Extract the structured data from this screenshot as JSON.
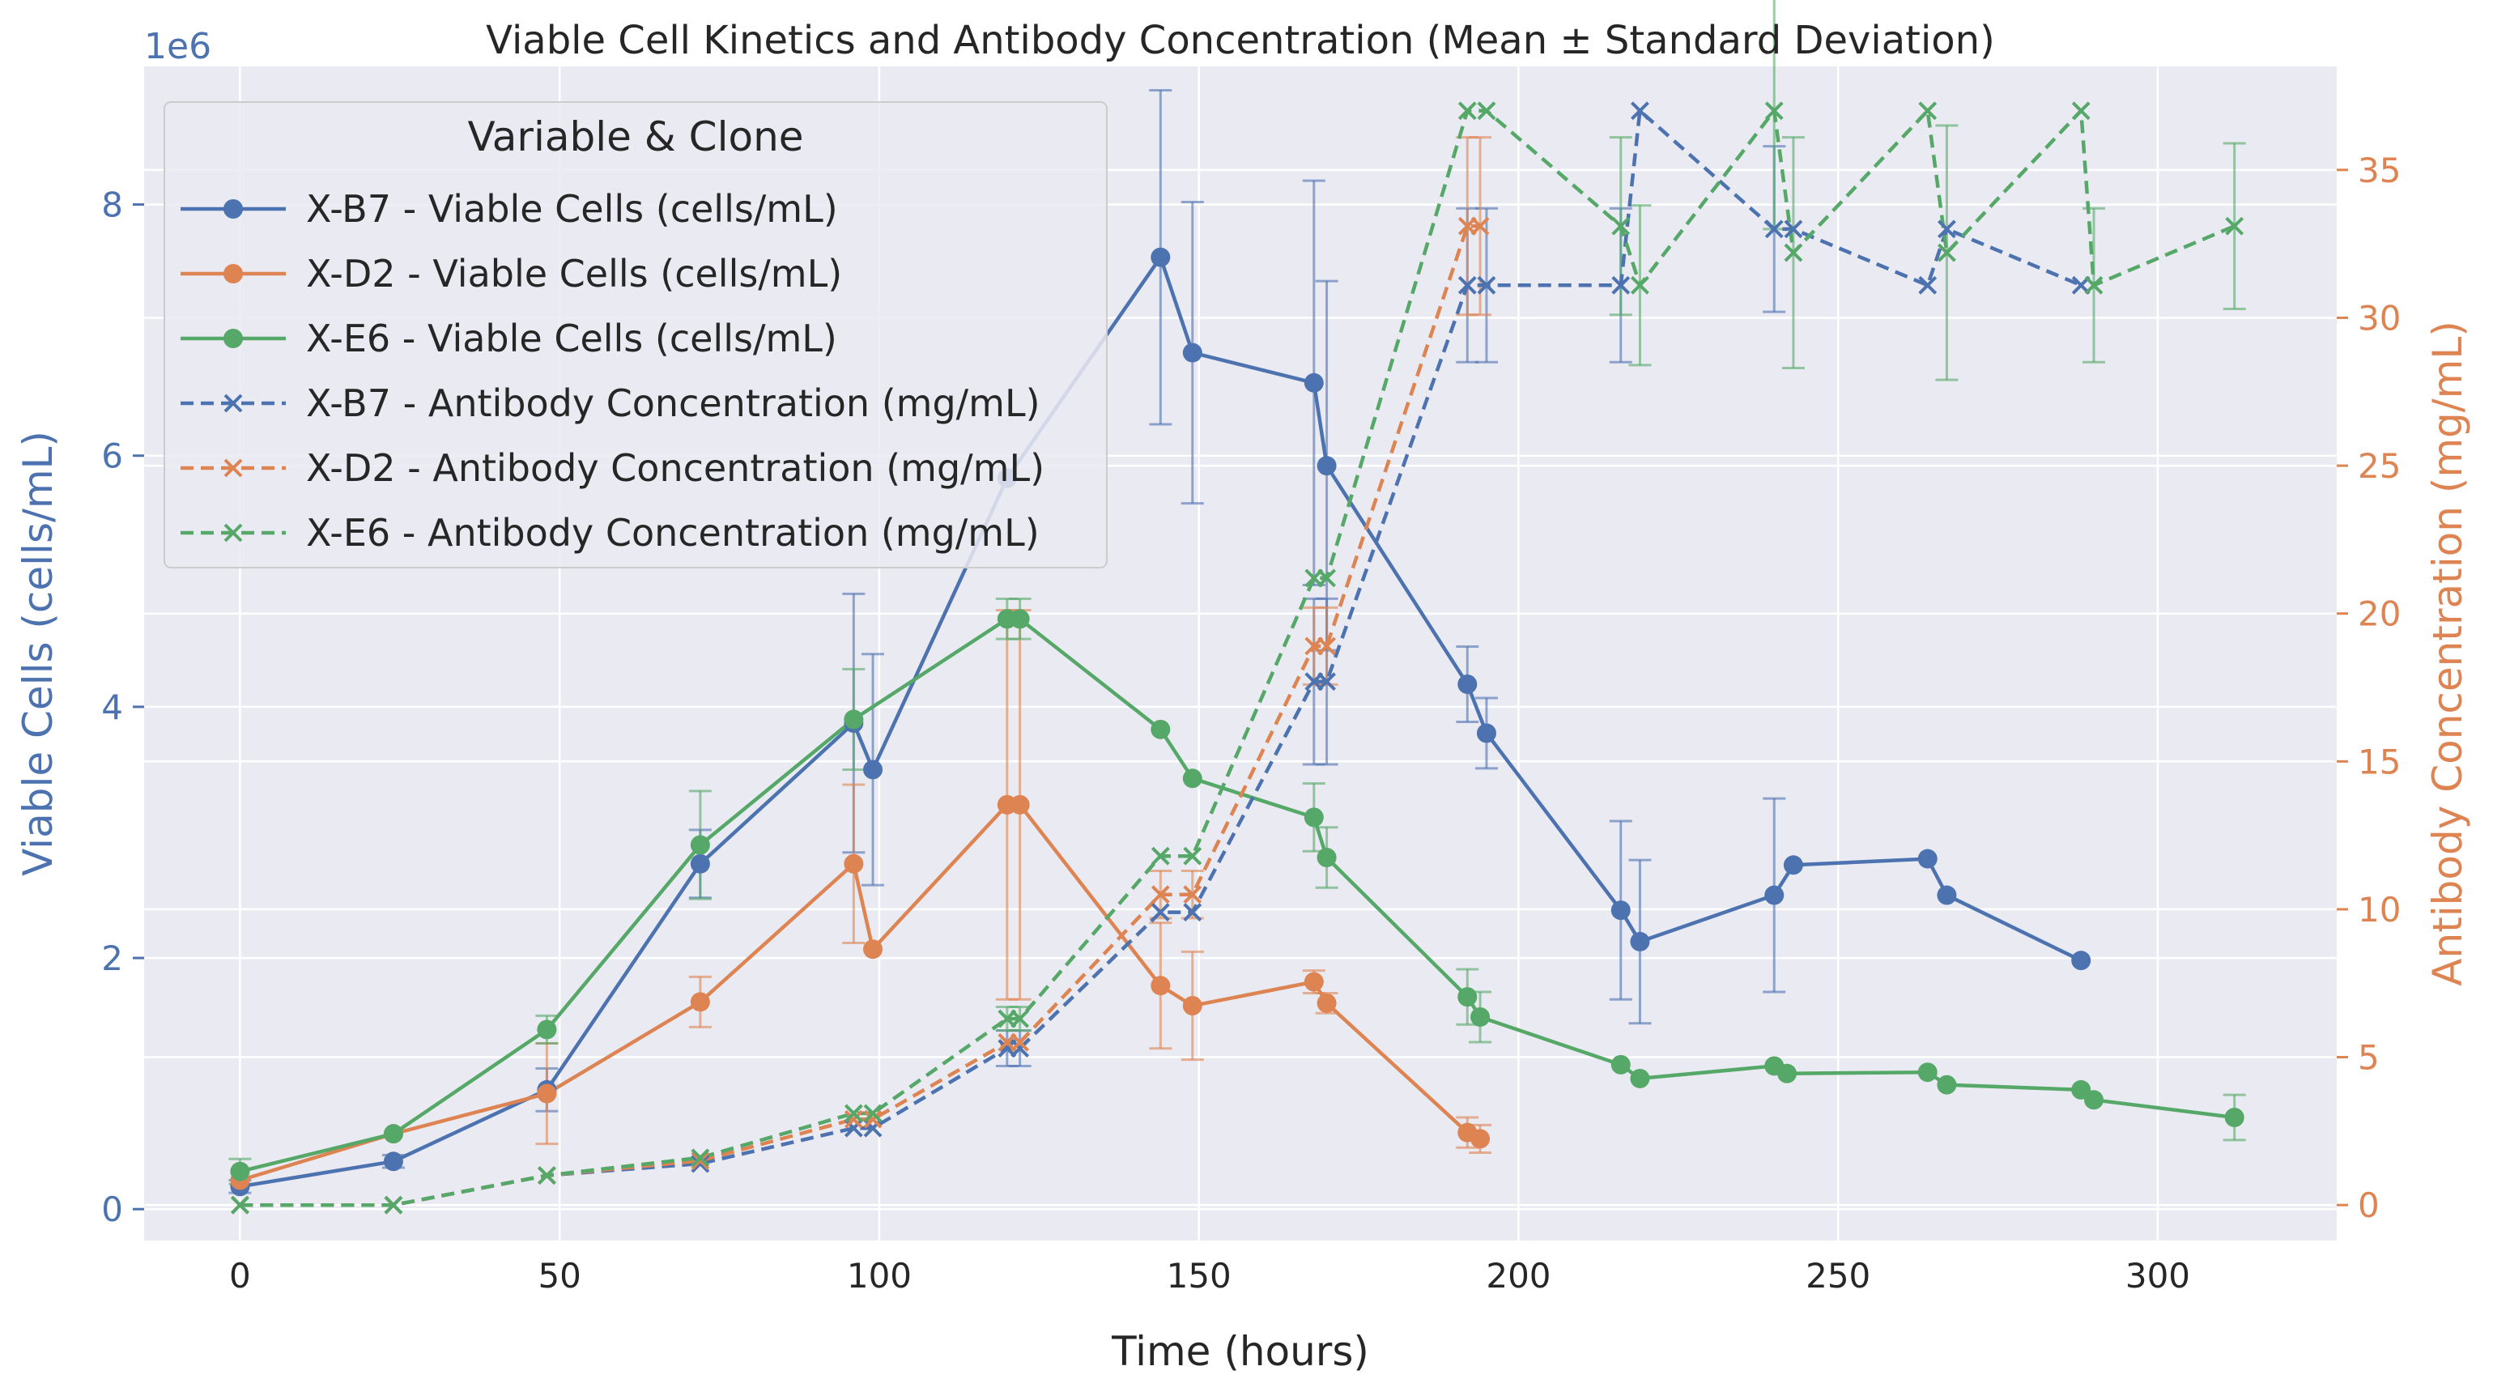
{
  "chart_data": {
    "type": "line",
    "title": "Viable Cell Kinetics and Antibody Concentration (Mean ± Standard Deviation)",
    "xlabel": "Time (hours)",
    "ylabel_left": "Viable Cells (cells/mL)",
    "ylabel_right": "Antibody Concentration (mg/mL)",
    "left_axis_offset_label": "1e6",
    "xlim": [
      -15,
      328
    ],
    "ylim_left": [
      -0.25,
      9.1
    ],
    "ylim_right": [
      -1.2,
      38.5
    ],
    "x_ticks": [
      0,
      50,
      100,
      150,
      200,
      250,
      300
    ],
    "y_left_ticks": [
      0,
      2,
      4,
      6,
      8
    ],
    "y_right_ticks": [
      0,
      5,
      10,
      15,
      20,
      25,
      30,
      35
    ],
    "grid": true,
    "legend": {
      "title": "Variable & Clone",
      "position": "upper-left",
      "entries": [
        "X-B7 - Viable Cells (cells/mL)",
        "X-D2 - Viable Cells (cells/mL)",
        "X-E6 - Viable Cells (cells/mL)",
        "X-B7 - Antibody Concentration (mg/mL)",
        "X-D2 - Antibody Concentration (mg/mL)",
        "X-E6 - Antibody Concentration (mg/mL)"
      ]
    },
    "colors": {
      "X-B7": "#4c72b0",
      "X-D2": "#dd8452",
      "X-E6": "#55a868",
      "left_axis": "#4c72b0",
      "right_axis": "#dd8452",
      "plot_bg": "#eaeaf2",
      "grid": "#ffffff"
    },
    "series": [
      {
        "name": "X-B7 - Viable Cells (cells/mL)",
        "clone": "X-B7",
        "axis": "left",
        "marker": "circle",
        "dash": false,
        "x": [
          0,
          24,
          48,
          72,
          96,
          99,
          120,
          144,
          149,
          168,
          170,
          192,
          195,
          216,
          219,
          240,
          243,
          264,
          267,
          288
        ],
        "y": [
          0.18,
          0.38,
          0.95,
          2.75,
          3.87,
          3.5,
          5.82,
          7.58,
          6.82,
          6.58,
          5.92,
          4.18,
          3.79,
          2.38,
          2.13,
          2.5,
          2.74,
          2.79,
          2.5,
          1.98
        ],
        "err": [
          0.05,
          0.05,
          0.17,
          0.27,
          1.03,
          0.92,
          null,
          1.33,
          1.2,
          1.61,
          1.47,
          0.3,
          0.28,
          0.71,
          0.65,
          0.77,
          null,
          null,
          null,
          null
        ]
      },
      {
        "name": "X-D2 - Viable Cells (cells/mL)",
        "clone": "X-D2",
        "axis": "left",
        "marker": "circle",
        "dash": false,
        "x": [
          0,
          24,
          48,
          72,
          96,
          99,
          120,
          122,
          144,
          149,
          168,
          170,
          192,
          194
        ],
        "y": [
          0.23,
          0.6,
          0.92,
          1.65,
          2.75,
          2.07,
          3.22,
          3.22,
          1.78,
          1.62,
          1.81,
          1.64,
          0.61,
          0.56
        ],
        "err": [
          null,
          null,
          0.4,
          0.2,
          0.63,
          null,
          1.55,
          1.55,
          0.5,
          0.43,
          0.09,
          0.08,
          0.12,
          0.11
        ]
      },
      {
        "name": "X-E6 - Viable Cells (cells/mL)",
        "clone": "X-E6",
        "axis": "left",
        "marker": "circle",
        "dash": false,
        "x": [
          0,
          24,
          48,
          72,
          96,
          120,
          122,
          144,
          149,
          168,
          170,
          192,
          194,
          216,
          219,
          240,
          242,
          264,
          267,
          288,
          290,
          312
        ],
        "y": [
          0.3,
          0.6,
          1.43,
          2.9,
          3.9,
          4.7,
          4.7,
          3.82,
          3.43,
          3.12,
          2.8,
          1.69,
          1.53,
          1.15,
          1.04,
          1.14,
          1.08,
          1.09,
          0.99,
          0.95,
          0.87,
          0.73
        ],
        "err": [
          0.1,
          null,
          0.11,
          0.43,
          0.4,
          0.16,
          0.16,
          null,
          null,
          0.27,
          0.24,
          0.22,
          0.2,
          null,
          null,
          null,
          null,
          null,
          null,
          null,
          null,
          0.18
        ]
      },
      {
        "name": "X-B7 - Antibody Concentration (mg/mL)",
        "clone": "X-B7",
        "axis": "right",
        "marker": "x",
        "dash": true,
        "x": [
          0,
          24,
          48,
          72,
          96,
          99,
          120,
          122,
          144,
          149,
          168,
          170,
          192,
          195,
          216,
          219,
          240,
          243,
          264,
          267,
          288
        ],
        "y": [
          0,
          0,
          1,
          1.4,
          2.6,
          2.6,
          5.3,
          5.3,
          9.9,
          9.9,
          17.7,
          17.7,
          31.1,
          31.1,
          31.1,
          37.0,
          33.0,
          33.0,
          31.1,
          33.0,
          31.1
        ],
        "err": [
          null,
          null,
          null,
          null,
          null,
          null,
          0.6,
          0.6,
          null,
          null,
          2.8,
          2.8,
          2.6,
          2.6,
          2.6,
          null,
          2.8,
          null,
          null,
          null,
          null
        ]
      },
      {
        "name": "X-D2 - Antibody Concentration (mg/mL)",
        "clone": "X-D2",
        "axis": "right",
        "marker": "x",
        "dash": true,
        "x": [
          0,
          24,
          48,
          72,
          96,
          99,
          120,
          122,
          144,
          149,
          168,
          170,
          192,
          194
        ],
        "y": [
          0,
          0,
          1,
          1.5,
          2.9,
          2.9,
          5.5,
          5.5,
          10.5,
          10.5,
          18.9,
          18.9,
          33.1,
          33.1
        ],
        "err": [
          null,
          null,
          null,
          null,
          null,
          null,
          null,
          null,
          0.8,
          0.8,
          1.3,
          1.3,
          3.0,
          3.0
        ]
      },
      {
        "name": "X-E6 - Antibody Concentration (mg/mL)",
        "clone": "X-E6",
        "axis": "right",
        "marker": "x",
        "dash": true,
        "x": [
          0,
          24,
          48,
          72,
          96,
          99,
          120,
          122,
          144,
          149,
          168,
          170,
          192,
          195,
          216,
          219,
          240,
          243,
          264,
          267,
          288,
          290,
          312
        ],
        "y": [
          0,
          0,
          1,
          1.6,
          3.1,
          3.1,
          6.3,
          6.3,
          11.8,
          11.8,
          21.2,
          21.2,
          37.0,
          37.0,
          33.1,
          31.1,
          37.0,
          32.2,
          37.0,
          32.2,
          37.0,
          31.1,
          33.1
        ],
        "err": [
          null,
          null,
          null,
          null,
          null,
          null,
          0.4,
          0.4,
          null,
          null,
          null,
          null,
          null,
          null,
          3.0,
          2.7,
          4.0,
          3.9,
          null,
          4.3,
          null,
          2.6,
          2.8
        ]
      }
    ]
  }
}
